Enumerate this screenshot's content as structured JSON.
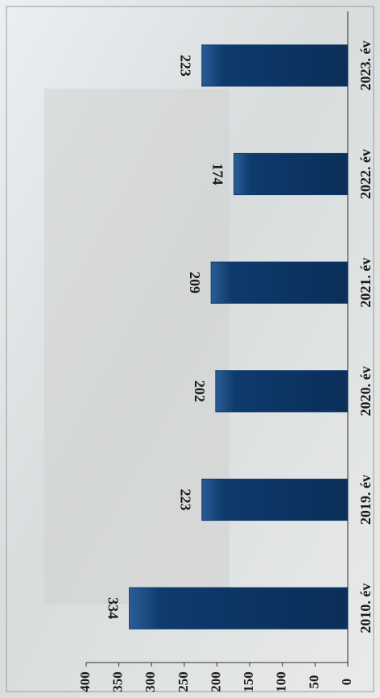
{
  "chart_data": {
    "type": "bar",
    "categories": [
      "2010. év",
      "2019. év",
      "2020. év",
      "2021. év",
      "2022. év",
      "2023. év"
    ],
    "values": [
      334,
      223,
      202,
      209,
      174,
      223
    ],
    "color": "#0e3a6c",
    "ylim": [
      0,
      400
    ],
    "yticks": [
      0,
      50,
      100,
      150,
      200,
      250,
      300,
      350,
      400
    ]
  }
}
